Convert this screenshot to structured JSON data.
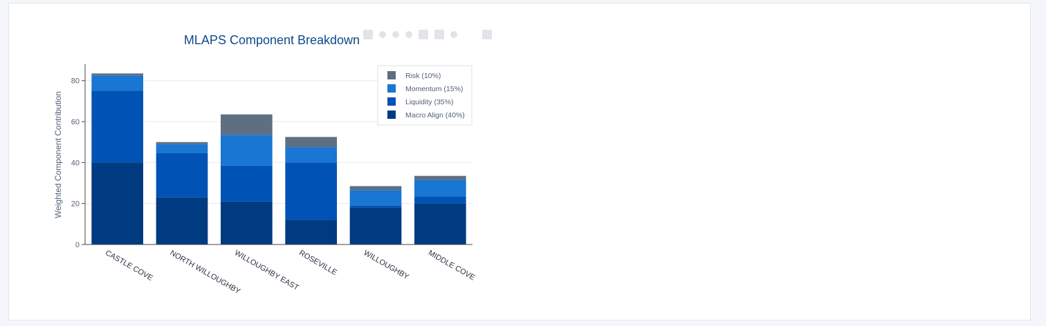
{
  "chart_data": {
    "type": "bar",
    "stacked": true,
    "title": "MLAPS Component Breakdown",
    "xlabel": "",
    "ylabel": "Weighted Component Contribution",
    "ylim": [
      0,
      88
    ],
    "yticks": [
      0,
      20,
      40,
      60,
      80
    ],
    "grid": true,
    "legend_position": "top-right",
    "categories": [
      "CASTLE COVE",
      "NORTH WILLOUGHBY",
      "WILLOUGHBY EAST",
      "ROSEVILLE",
      "WILLOUGHBY",
      "MIDDLE COVE"
    ],
    "series": [
      {
        "name": "Macro Align (40%)",
        "color": "#003a80",
        "values": [
          40,
          23,
          21,
          12,
          18,
          20
        ]
      },
      {
        "name": "Liquidity (35%)",
        "color": "#0052b4",
        "values": [
          35,
          21.5,
          17.5,
          28,
          1,
          3.5
        ]
      },
      {
        "name": "Momentum (15%)",
        "color": "#1976d2",
        "values": [
          7.5,
          4.5,
          15,
          7.5,
          7.5,
          8
        ]
      },
      {
        "name": "Risk (10%)",
        "color": "#5e6f82",
        "values": [
          1,
          1,
          10,
          5,
          2,
          2
        ]
      }
    ],
    "legend_order": [
      "Risk (10%)",
      "Momentum (15%)",
      "Liquidity (35%)",
      "Macro Align (40%)"
    ]
  },
  "colors": {
    "title": "#0d4a8a",
    "axis_text": "#506078",
    "tick_text": "#2a3442",
    "grid": "#e6e9ee"
  },
  "modebar_icons": [
    "camera-icon",
    "zoom-icon",
    "pan-icon",
    "zoom-in-icon",
    "zoom-out-icon",
    "autoscale-icon",
    "reset-axes-icon",
    "plotly-logo-icon"
  ]
}
